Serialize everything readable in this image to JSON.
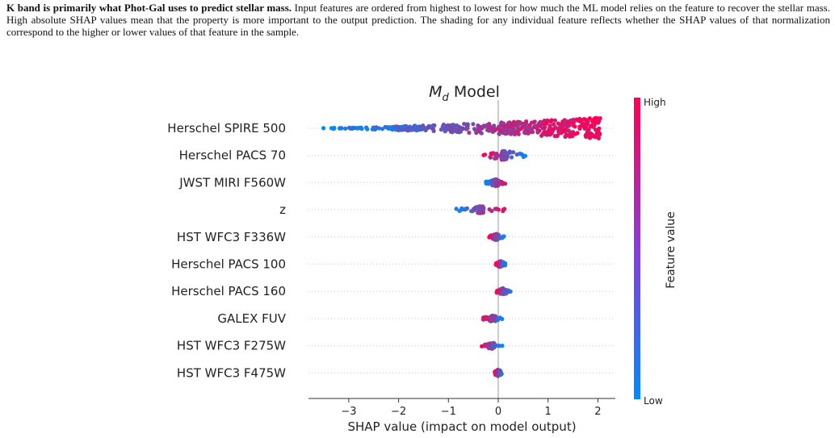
{
  "caption": {
    "bold": "K band is primarily what Phot-Gal uses to predict stellar mass.",
    "text": "Input features are ordered from highest to lowest for how much the ML model relies on the feature to recover the stellar mass. High absolute SHAP values mean that the property is more important to the output prediction. The shading for any individual feature reflects whether the SHAP values of that normalization correspond to the higher or lower values of that feature in the sample."
  },
  "chart_data": {
    "type": "scatter",
    "subtype": "shap-beeswarm",
    "title": {
      "prefix": "M",
      "subscript": "d",
      "suffix": " Model"
    },
    "xlabel": "SHAP value (impact on model output)",
    "xlim": [
      -3.8,
      2.3
    ],
    "xticks": [
      -3,
      -2,
      -1,
      0,
      1,
      2
    ],
    "xtick_labels": [
      "−3",
      "−2",
      "−1",
      "0",
      "1",
      "2"
    ],
    "colorbar": {
      "label": "Feature value",
      "high": "High",
      "low": "Low"
    },
    "colors": {
      "low": "#008bfb",
      "high": "#ff0052",
      "axis": "#333333",
      "grid": "#cccccc",
      "zero_line": "#999999"
    },
    "features": [
      {
        "name": "Herschel SPIRE 500",
        "shap_range": [
          -3.55,
          2.05
        ],
        "low_side": "negative",
        "spread": 1.0
      },
      {
        "name": "Herschel PACS 70",
        "shap_range": [
          -0.3,
          0.55
        ],
        "low_side": "positive",
        "spread": 0.45
      },
      {
        "name": "JWST MIRI F560W",
        "shap_range": [
          -0.25,
          0.15
        ],
        "low_side": "negative",
        "spread": 0.35
      },
      {
        "name": "z",
        "shap_range": [
          -0.85,
          0.15
        ],
        "low_side": "negative",
        "spread": 0.35
      },
      {
        "name": "HST WFC3 F336W",
        "shap_range": [
          -0.2,
          0.12
        ],
        "low_side": "positive",
        "spread": 0.3
      },
      {
        "name": "Herschel PACS 100",
        "shap_range": [
          -0.05,
          0.15
        ],
        "low_side": "positive",
        "spread": 0.3
      },
      {
        "name": "Herschel PACS 160",
        "shap_range": [
          -0.05,
          0.25
        ],
        "low_side": "positive",
        "spread": 0.3
      },
      {
        "name": "GALEX FUV",
        "shap_range": [
          -0.3,
          0.08
        ],
        "low_side": "positive",
        "spread": 0.3
      },
      {
        "name": "HST WFC3 F275W",
        "shap_range": [
          -0.35,
          0.08
        ],
        "low_side": "positive",
        "spread": 0.3
      },
      {
        "name": "HST WFC3 F475W",
        "shap_range": [
          -0.08,
          0.08
        ],
        "low_side": "positive",
        "spread": 0.35
      }
    ]
  }
}
